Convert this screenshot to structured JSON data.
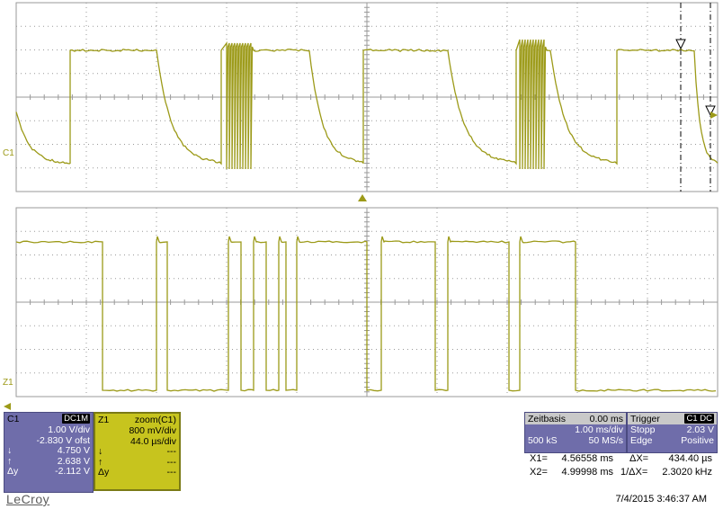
{
  "scope": {
    "trace_color": "#9c9a18",
    "grid_color": "#9a9a9a",
    "top_channel_label": "C1",
    "bottom_channel_label": "Z1"
  },
  "c1": {
    "title": "C1",
    "coupling": "DC1M",
    "rows": [
      {
        "k": "",
        "v": "1.00 V/div"
      },
      {
        "k": "",
        "v": "-2.830 V ofst"
      },
      {
        "k": "↓",
        "v": "4.750 V"
      },
      {
        "k": "↑",
        "v": "2.638 V"
      },
      {
        "k": "Δy",
        "v": "-2.112 V"
      }
    ]
  },
  "z1": {
    "title": "Z1",
    "source": "zoom(C1)",
    "rows": [
      {
        "k": "",
        "v": "800 mV/div"
      },
      {
        "k": "",
        "v": "44.0 µs/div"
      },
      {
        "k": "↓",
        "v": "---"
      },
      {
        "k": "↑",
        "v": "---"
      },
      {
        "k": "Δy",
        "v": "---"
      }
    ]
  },
  "timebase": {
    "title": "Zeitbasis",
    "delay": "0.00 ms",
    "div": "1.00 ms/div",
    "samples": "500 kS",
    "rate": "50 MS/s"
  },
  "trigger": {
    "title": "Trigger",
    "badge": "C1 DC",
    "mode": "Stopp",
    "level": "2.03 V",
    "type": "Edge",
    "slope": "Positive"
  },
  "measure": {
    "x1_label": "X1=",
    "x1": "4.56558 ms",
    "dx_label": "ΔX=",
    "dx": "434.40 µs",
    "x2_label": "X2=",
    "x2": "4.99998 ms",
    "inv_label": "1/ΔX=",
    "inv": "2.3020 kHz"
  },
  "logo": "LeCroy",
  "datetime": "7/4/2015 3:46:37 AM"
}
